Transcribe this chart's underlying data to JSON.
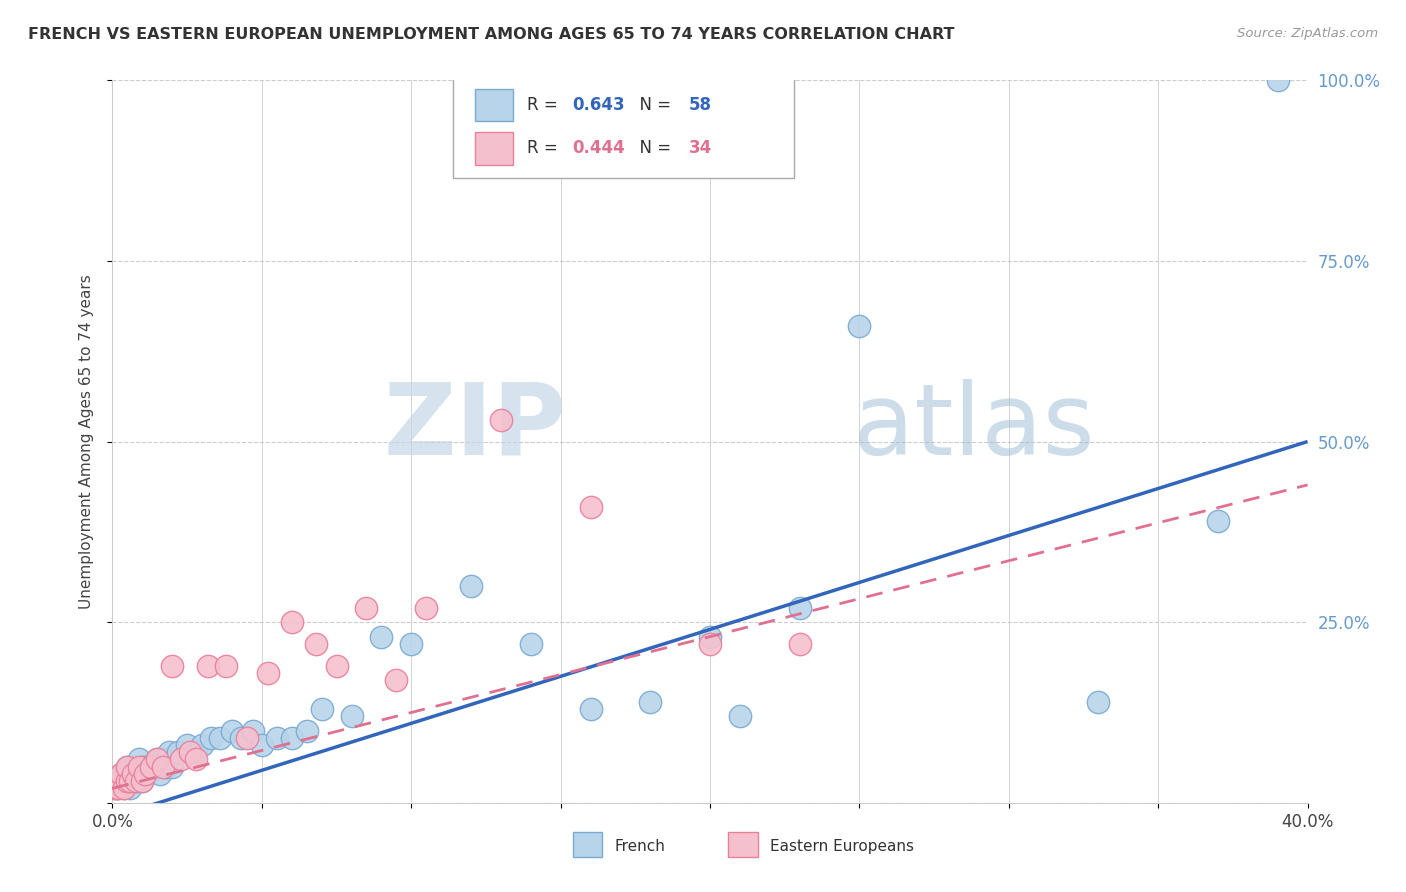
{
  "title": "FRENCH VS EASTERN EUROPEAN UNEMPLOYMENT AMONG AGES 65 TO 74 YEARS CORRELATION CHART",
  "source": "Source: ZipAtlas.com",
  "ylabel": "Unemployment Among Ages 65 to 74 years",
  "xlim": [
    0.0,
    0.4
  ],
  "ylim": [
    0.0,
    1.0
  ],
  "xtick_positions": [
    0.0,
    0.05,
    0.1,
    0.15,
    0.2,
    0.25,
    0.3,
    0.35,
    0.4
  ],
  "xticklabels": [
    "0.0%",
    "",
    "",
    "",
    "",
    "",
    "",
    "",
    "40.0%"
  ],
  "ytick_positions": [
    0.0,
    0.25,
    0.5,
    0.75,
    1.0
  ],
  "yticklabels": [
    "",
    "25.0%",
    "50.0%",
    "75.0%",
    "100.0%"
  ],
  "french_R": 0.643,
  "french_N": 58,
  "eastern_R": 0.444,
  "eastern_N": 34,
  "french_color": "#b8d4ea",
  "french_edge_color": "#7aaad0",
  "eastern_color": "#f5c0ce",
  "eastern_edge_color": "#e8809a",
  "french_line_color": "#3366bb",
  "eastern_line_color": "#e07090",
  "ytick_color": "#6699cc",
  "watermark_zip": "ZIP",
  "watermark_atlas": "atlas",
  "background_color": "#ffffff",
  "french_x": [
    0.001,
    0.002,
    0.002,
    0.003,
    0.003,
    0.004,
    0.004,
    0.005,
    0.005,
    0.006,
    0.006,
    0.007,
    0.007,
    0.008,
    0.008,
    0.009,
    0.009,
    0.01,
    0.01,
    0.011,
    0.011,
    0.012,
    0.013,
    0.014,
    0.015,
    0.016,
    0.017,
    0.018,
    0.019,
    0.02,
    0.022,
    0.025,
    0.028,
    0.03,
    0.033,
    0.036,
    0.04,
    0.043,
    0.047,
    0.05,
    0.055,
    0.06,
    0.065,
    0.07,
    0.08,
    0.09,
    0.1,
    0.12,
    0.14,
    0.16,
    0.18,
    0.2,
    0.21,
    0.23,
    0.25,
    0.33,
    0.37,
    0.39
  ],
  "french_y": [
    0.02,
    0.02,
    0.03,
    0.03,
    0.04,
    0.02,
    0.04,
    0.03,
    0.05,
    0.02,
    0.04,
    0.03,
    0.05,
    0.03,
    0.04,
    0.04,
    0.06,
    0.03,
    0.05,
    0.04,
    0.05,
    0.04,
    0.05,
    0.05,
    0.06,
    0.04,
    0.06,
    0.05,
    0.07,
    0.05,
    0.07,
    0.08,
    0.07,
    0.08,
    0.09,
    0.09,
    0.1,
    0.09,
    0.1,
    0.08,
    0.09,
    0.09,
    0.1,
    0.13,
    0.12,
    0.23,
    0.22,
    0.3,
    0.22,
    0.13,
    0.14,
    0.23,
    0.12,
    0.27,
    0.66,
    0.14,
    0.39,
    1.0
  ],
  "eastern_x": [
    0.001,
    0.002,
    0.003,
    0.003,
    0.004,
    0.005,
    0.005,
    0.006,
    0.007,
    0.008,
    0.009,
    0.01,
    0.011,
    0.013,
    0.015,
    0.017,
    0.02,
    0.023,
    0.026,
    0.028,
    0.032,
    0.038,
    0.045,
    0.052,
    0.06,
    0.068,
    0.075,
    0.085,
    0.095,
    0.105,
    0.13,
    0.16,
    0.2,
    0.23
  ],
  "eastern_y": [
    0.02,
    0.02,
    0.03,
    0.04,
    0.02,
    0.03,
    0.05,
    0.03,
    0.04,
    0.03,
    0.05,
    0.03,
    0.04,
    0.05,
    0.06,
    0.05,
    0.19,
    0.06,
    0.07,
    0.06,
    0.19,
    0.19,
    0.09,
    0.18,
    0.25,
    0.22,
    0.19,
    0.27,
    0.17,
    0.27,
    0.53,
    0.41,
    0.22,
    0.22
  ],
  "french_line_x0": 0.0,
  "french_line_y0": -0.02,
  "french_line_x1": 0.4,
  "french_line_y1": 0.5,
  "eastern_line_x0": 0.0,
  "eastern_line_y0": 0.02,
  "eastern_line_x1": 0.4,
  "eastern_line_y1": 0.44
}
